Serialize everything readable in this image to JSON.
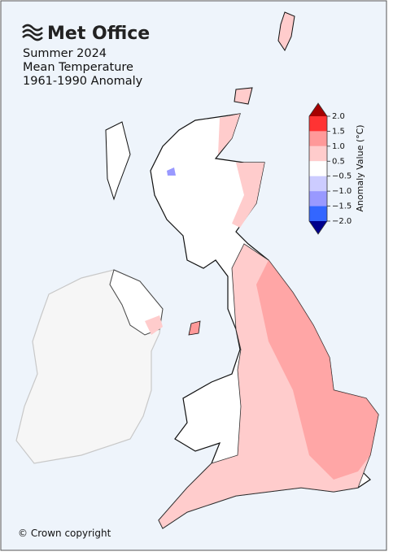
{
  "header": {
    "logo": "Met Office",
    "lines": [
      "Summer 2024",
      "Mean Temperature",
      "1961-1990 Anomaly"
    ]
  },
  "legend": {
    "title": "Anomaly Value (°C)",
    "ticks": [
      {
        "value": 2,
        "label": "2.0"
      },
      {
        "value": 1.5,
        "label": "1.5"
      },
      {
        "value": 1,
        "label": "1.0"
      },
      {
        "value": 0.5,
        "label": "0.5"
      },
      {
        "value": -0.5,
        "label": "−0.5"
      },
      {
        "value": -1,
        "label": "−1.0"
      },
      {
        "value": -1.5,
        "label": "−1.5"
      },
      {
        "value": -2,
        "label": "−2.0"
      }
    ],
    "colors": [
      "#ffffff",
      "#ffcccc",
      "#ff9999",
      "#ff3333"
    ],
    "colors_negative": [
      "#ccccff",
      "#9999ff",
      "#3366ff"
    ],
    "extend_colors": [
      "#a50000",
      "#00008c"
    ]
  },
  "footer": "© Crown copyright"
}
